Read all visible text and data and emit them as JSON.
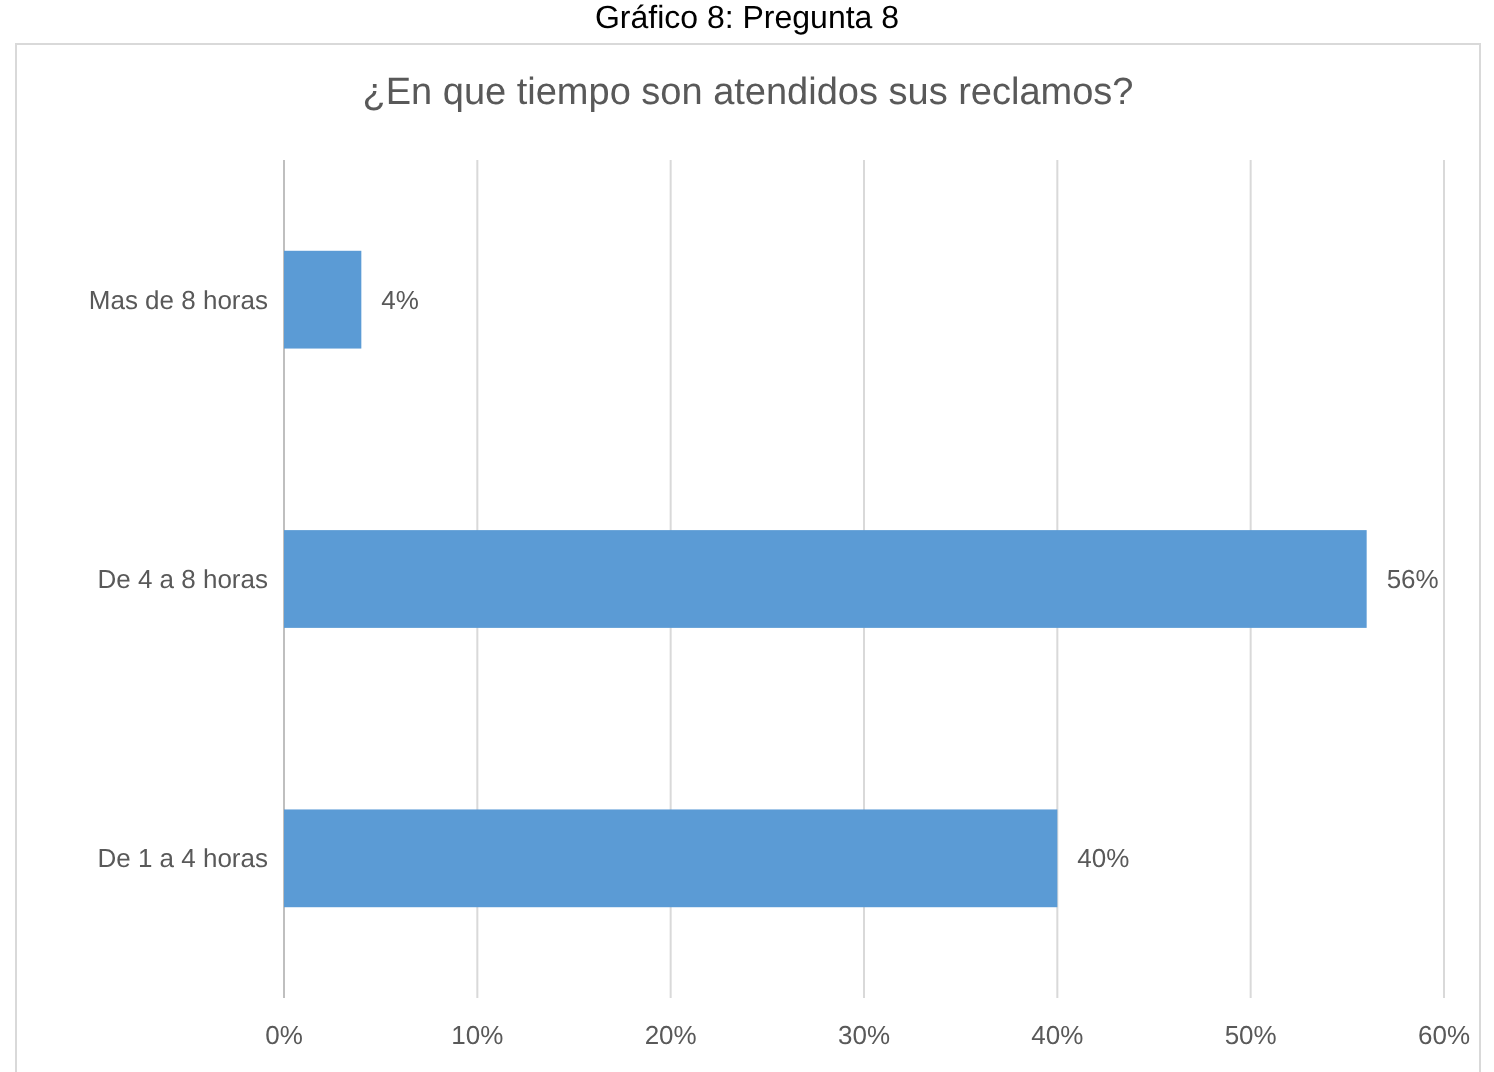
{
  "chart_data": {
    "type": "bar",
    "orientation": "horizontal",
    "title": "¿En que tiempo son atendidos sus reclamos?",
    "annotations": [
      "Gráfico 8: Pregunta 8"
    ],
    "categories": [
      "Mas de 8 horas",
      "De 4 a 8 horas",
      "De 1 a 4 horas"
    ],
    "values": [
      4,
      56,
      40
    ],
    "value_labels": [
      "4%",
      "56%",
      "40%"
    ],
    "color": "#5b9bd5",
    "xlim": [
      0,
      60
    ],
    "xticks": [
      {
        "value": 0,
        "label": "0%"
      },
      {
        "value": 10,
        "label": "10%"
      },
      {
        "value": 20,
        "label": "20%"
      },
      {
        "value": 30,
        "label": "30%"
      },
      {
        "value": 40,
        "label": "40%"
      },
      {
        "value": 50,
        "label": "50%"
      },
      {
        "value": 60,
        "label": "60%"
      }
    ],
    "grid": "x"
  }
}
